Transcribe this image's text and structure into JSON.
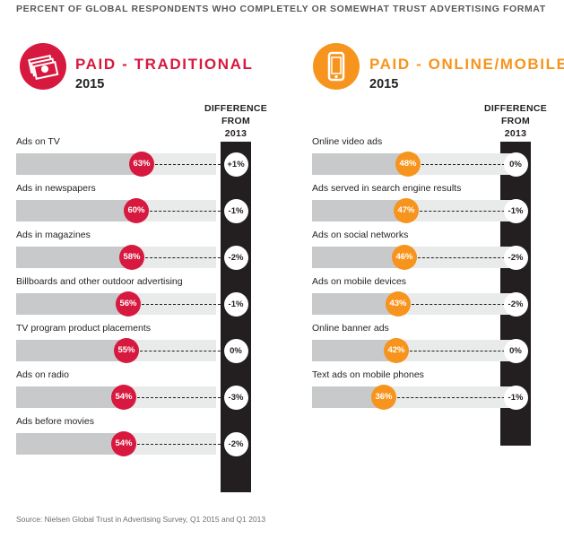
{
  "header": "PERCENT OF GLOBAL RESPONDENTS WHO COMPLETELY OR SOMEWHAT TRUST ADVERTISING FORMAT",
  "diff_header": [
    "DIFFERENCE",
    "FROM",
    "2013"
  ],
  "source": "Source: Nielsen Global Trust in Advertising Survey, Q1 2015 and Q1 2013",
  "colors": {
    "traditional": "#d7193f",
    "online": "#f7941d",
    "dark": "#231f20",
    "bar": "#c8c9ca"
  },
  "chart_data": [
    {
      "type": "bar",
      "title": "PAID - TRADITIONAL",
      "subtitle": "2015",
      "icon": "money-icon",
      "xlim": [
        0,
        100
      ],
      "categories": [
        "Ads on TV",
        "Ads in newspapers",
        "Ads in magazines",
        "Billboards and other outdoor advertising",
        "TV program product placements",
        "Ads on radio",
        "Ads before movies"
      ],
      "values": [
        63,
        60,
        58,
        56,
        55,
        54,
        54
      ],
      "value_labels": [
        "63%",
        "60%",
        "58%",
        "56%",
        "55%",
        "54%",
        "54%"
      ],
      "difference_from_2013": [
        "+1%",
        "-1%",
        "-2%",
        "-1%",
        "0%",
        "-3%",
        "-2%"
      ]
    },
    {
      "type": "bar",
      "title": "PAID - ONLINE/MOBILE",
      "subtitle": "2015",
      "icon": "smartphone-icon",
      "xlim": [
        0,
        100
      ],
      "categories": [
        "Online video ads",
        "Ads served in search engine results",
        "Ads on social networks",
        "Ads on mobile devices",
        "Online banner ads",
        "Text ads on mobile phones"
      ],
      "values": [
        48,
        47,
        46,
        43,
        42,
        36
      ],
      "value_labels": [
        "48%",
        "47%",
        "46%",
        "43%",
        "42%",
        "36%"
      ],
      "difference_from_2013": [
        "0%",
        "-1%",
        "-2%",
        "-2%",
        "0%",
        "-1%"
      ]
    }
  ]
}
